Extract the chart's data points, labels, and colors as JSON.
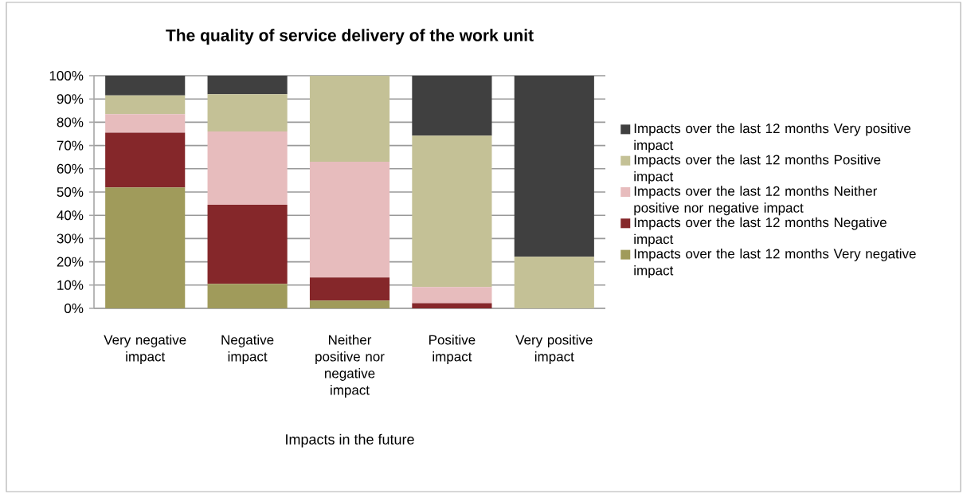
{
  "chart_data": {
    "type": "bar",
    "stacked": true,
    "title": "The quality of service delivery of the work unit",
    "xlabel": "Impacts in the future",
    "categories": [
      "Very negative impact",
      "Negative impact",
      "Neither positive nor negative impact",
      "Positive impact",
      "Very positive impact"
    ],
    "series": [
      {
        "name": "Impacts over the last 12 months Very negative impact",
        "color": "#a09b5b",
        "values": [
          52,
          10.5,
          3.3,
          0,
          0
        ]
      },
      {
        "name": "Impacts over the last 12 months Negative impact",
        "color": "#85272a",
        "values": [
          23.5,
          34,
          10,
          2.2,
          0
        ]
      },
      {
        "name": "Impacts over the last 12 months Neither positive nor negative impact",
        "color": "#e7bcbd",
        "values": [
          8,
          31.5,
          49.7,
          7,
          0
        ]
      },
      {
        "name": "Impacts over the last 12 months Positive impact",
        "color": "#c4c196",
        "values": [
          8,
          16,
          37,
          65,
          22.2
        ]
      },
      {
        "name": "Impacts over the last 12 months Very positive impact",
        "color": "#404040",
        "values": [
          8.5,
          8,
          0,
          25.8,
          77.8
        ]
      }
    ],
    "ylim": [
      0,
      100
    ],
    "yticks": [
      {
        "value": 0,
        "label": "0%"
      },
      {
        "value": 10,
        "label": "10%"
      },
      {
        "value": 20,
        "label": "20%"
      },
      {
        "value": 30,
        "label": "30%"
      },
      {
        "value": 40,
        "label": "40%"
      },
      {
        "value": 50,
        "label": "50%"
      },
      {
        "value": 60,
        "label": "60%"
      },
      {
        "value": 70,
        "label": "70%"
      },
      {
        "value": 80,
        "label": "80%"
      },
      {
        "value": 90,
        "label": "90%"
      },
      {
        "value": 100,
        "label": "100%"
      }
    ],
    "grid": "y",
    "legend": "right"
  }
}
